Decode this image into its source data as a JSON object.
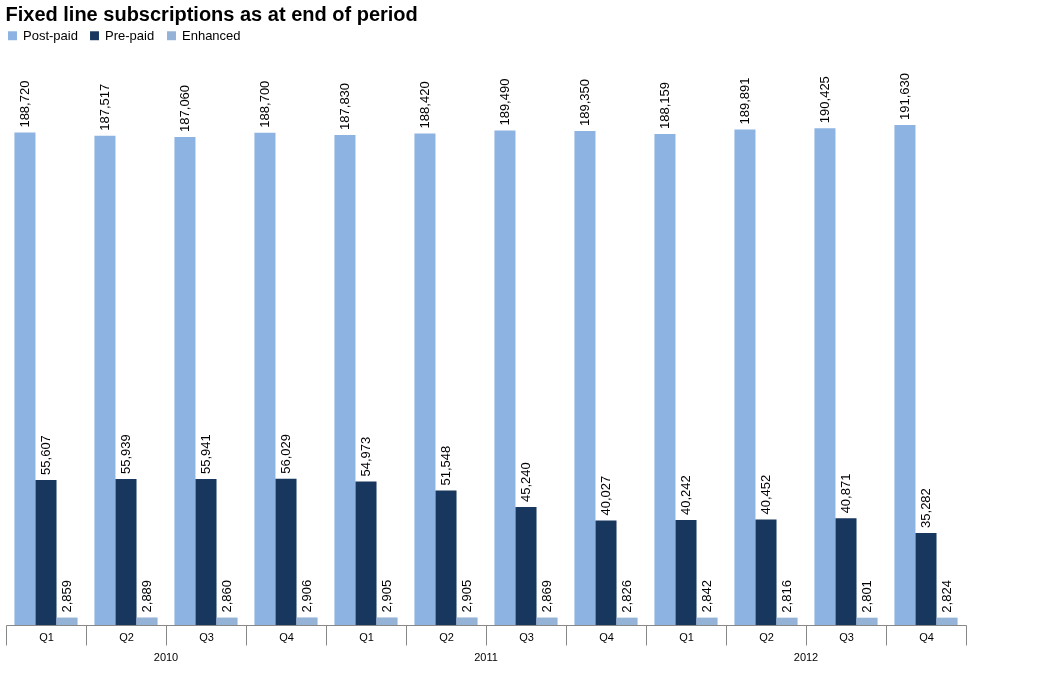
{
  "chart_data": {
    "type": "bar",
    "title": "Fixed line subscriptions as at end of period",
    "categories": [
      "Q1",
      "Q2",
      "Q3",
      "Q4",
      "Q1",
      "Q2",
      "Q3",
      "Q4",
      "Q1",
      "Q2",
      "Q3",
      "Q4"
    ],
    "series": [
      {
        "name": "Post-paid",
        "color": "#8db3e2",
        "values": [
          188720,
          187517,
          187060,
          188700,
          187830,
          188420,
          189490,
          189350,
          188159,
          189891,
          190425,
          191630
        ],
        "value_labels": [
          "188,720",
          "187,517",
          "187,060",
          "188,700",
          "187,830",
          "188,420",
          "189,490",
          "189,350",
          "188,159",
          "189,891",
          "190,425",
          "191,630"
        ]
      },
      {
        "name": "Pre-paid",
        "color": "#17375e",
        "values": [
          55607,
          55939,
          55941,
          56029,
          54973,
          51548,
          45240,
          40027,
          40242,
          40452,
          40871,
          35282
        ],
        "value_labels": [
          "55,607",
          "55,939",
          "55,941",
          "56,029",
          "54,973",
          "51,548",
          "45,240",
          "40,027",
          "40,242",
          "40,452",
          "40,871",
          "35,282"
        ]
      },
      {
        "name": "Enhanced",
        "color": "#95b3d7",
        "values": [
          2859,
          2889,
          2860,
          2906,
          2905,
          2905,
          2869,
          2826,
          2842,
          2816,
          2801,
          2824
        ],
        "value_labels": [
          "2,859",
          "2,889",
          "2,860",
          "2,906",
          "2,905",
          "2,905",
          "2,869",
          "2,826",
          "2,842",
          "2,816",
          "2,801",
          "2,824"
        ]
      }
    ],
    "annotations": [
      "2010",
      "2011",
      "2012"
    ],
    "legend": "top left",
    "grid": false
  }
}
